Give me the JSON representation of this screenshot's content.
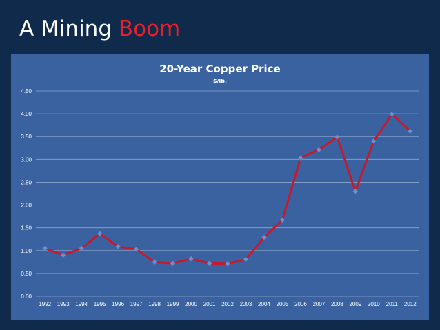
{
  "slide": {
    "title_main": "A Mining ",
    "title_accent": "Boom"
  },
  "colors": {
    "background": "#0f2a4a",
    "panel": "#3a62a0",
    "line": "#c8182a",
    "marker": "#6d8fcf",
    "accent": "#e8202a"
  },
  "chart_data": {
    "type": "line",
    "title": "20-Year Copper Price",
    "subtitle": "$/lb.",
    "xlabel": "",
    "ylabel": "",
    "ylim": [
      0,
      4.5
    ],
    "yticks": [
      "0.00",
      "0.50",
      "1.00",
      "1.50",
      "2.00",
      "2.50",
      "3.00",
      "3.50",
      "4.00",
      "4.50"
    ],
    "grid": true,
    "legend": "none",
    "categories": [
      "1992",
      "1993",
      "1994",
      "1995",
      "1996",
      "1997",
      "1998",
      "1999",
      "2000",
      "2001",
      "2002",
      "2003",
      "2004",
      "2005",
      "2006",
      "2007",
      "2008",
      "2009",
      "2010",
      "2011",
      "2012"
    ],
    "series": [
      {
        "values": [
          1.05,
          0.9,
          1.05,
          1.37,
          1.09,
          1.03,
          0.75,
          0.72,
          0.82,
          0.72,
          0.71,
          0.81,
          1.29,
          1.67,
          3.03,
          3.21,
          3.49,
          2.3,
          3.4,
          3.99,
          3.62
        ]
      }
    ]
  }
}
